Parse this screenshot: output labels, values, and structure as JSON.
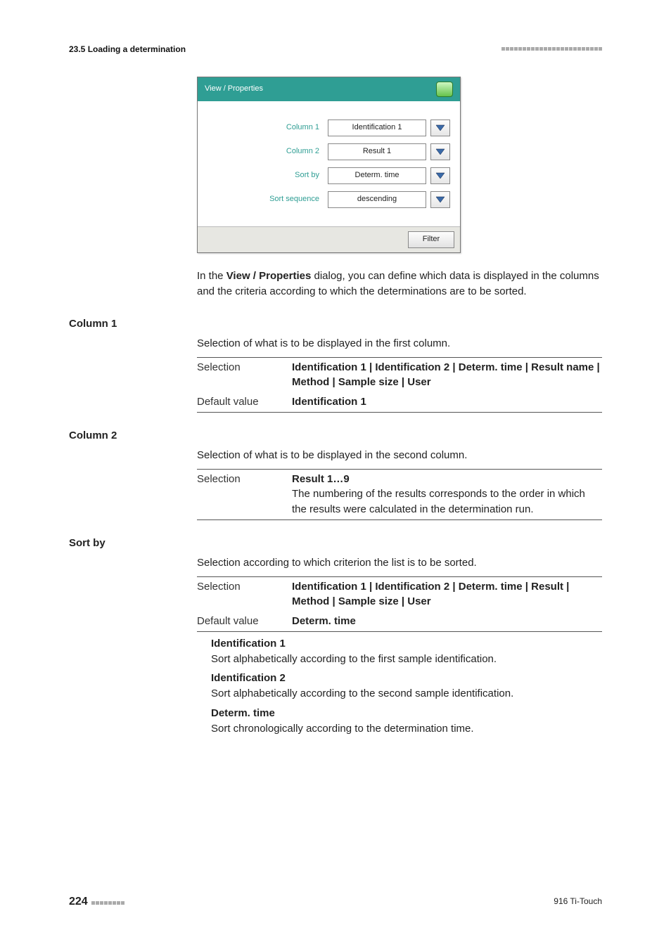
{
  "header": {
    "breadcrumb": "23.5 Loading a determination",
    "decor_squares": 24
  },
  "dialog": {
    "title": "View / Properties",
    "rows": [
      {
        "label": "Column 1",
        "value": "Identification 1"
      },
      {
        "label": "Column 2",
        "value": "Result 1"
      },
      {
        "label": "Sort by",
        "value": "Determ. time"
      },
      {
        "label": "Sort sequence",
        "value": "descending"
      }
    ],
    "filter_label": "Filter",
    "colors": {
      "titlebar_bg": "#2f9e94",
      "titlebar_text": "#ffffff",
      "label_color": "#2f9e94",
      "home_gradient_top": "#cdf7c2",
      "home_gradient_bottom": "#66c24b",
      "dropdown_arrow": "#3a6aa8",
      "footer_bg": "#e7e7e2"
    }
  },
  "intro": {
    "prefix": "In the ",
    "bold": "View / Properties",
    "suffix": " dialog, you can define which data is displayed in the columns and the criteria according to which the determinations are to be sorted."
  },
  "sections": [
    {
      "title": "Column 1",
      "desc": "Selection of what is to be displayed in the first column.",
      "rows": [
        {
          "k": "Selection",
          "v_bold": "Identification 1 | Identification 2 | Determ. time | Result name | Method | Sample size | User"
        },
        {
          "k": "Default value",
          "v_bold": "Identification 1"
        }
      ]
    },
    {
      "title": "Column 2",
      "desc": "Selection of what is to be displayed in the second column.",
      "rows": [
        {
          "k": "Selection",
          "v_bold": "Result 1…9",
          "v_note": "The numbering of the results corresponds to the order in which the results were calculated in the determination run."
        }
      ]
    },
    {
      "title": "Sort by",
      "desc": "Selection according to which criterion the list is to be sorted.",
      "rows": [
        {
          "k": "Selection",
          "v_bold": "Identification 1 | Identification 2 | Determ. time | Result | Method | Sample size | User"
        },
        {
          "k": "Default value",
          "v_bold": "Determ. time"
        }
      ],
      "options": [
        {
          "t": "Identification 1",
          "d": "Sort alphabetically according to the first sample identification."
        },
        {
          "t": "Identification 2",
          "d": "Sort alphabetically according to the second sample identification."
        },
        {
          "t": "Determ. time",
          "d": "Sort chronologically according to the determination time."
        }
      ]
    }
  ],
  "footer": {
    "page": "224",
    "decor_squares": 8,
    "product": "916 Ti-Touch"
  }
}
